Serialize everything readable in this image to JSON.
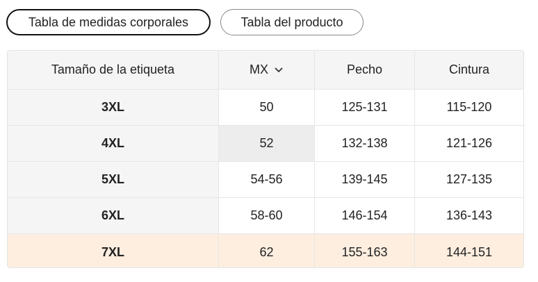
{
  "tabs": [
    "Tabla de medidas corporales",
    "Tabla del producto"
  ],
  "table": {
    "headers": [
      "Tamaño de la etiqueta",
      "MX",
      "Pecho",
      "Cintura"
    ],
    "rows": [
      [
        "3XL",
        "50",
        "125-131",
        "115-120"
      ],
      [
        "4XL",
        "52",
        "132-138",
        "121-126"
      ],
      [
        "5XL",
        "54-56",
        "139-145",
        "127-135"
      ],
      [
        "6XL",
        "58-60",
        "146-154",
        "136-143"
      ],
      [
        "7XL",
        "62",
        "155-163",
        "144-151"
      ]
    ]
  }
}
